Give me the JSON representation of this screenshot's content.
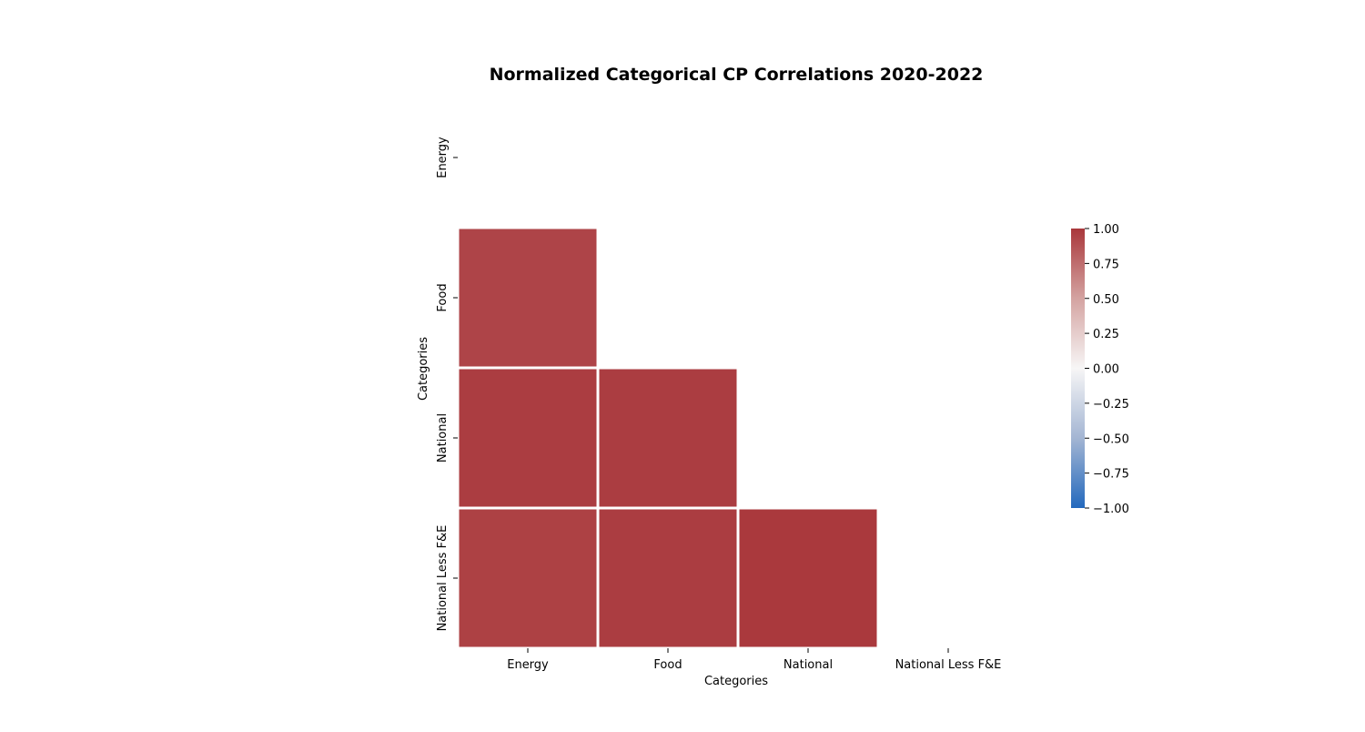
{
  "chart_data": {
    "type": "heatmap",
    "title": "Normalized Categorical CP Correlations 2020-2022",
    "xlabel": "Categories",
    "ylabel": "Categories",
    "categories": [
      "Energy",
      "Food",
      "National",
      "National Less F&E"
    ],
    "mask": "upper-triangle-including-diagonal",
    "cells": [
      {
        "row": "Food",
        "col": "Energy",
        "value": 0.93
      },
      {
        "row": "National",
        "col": "Energy",
        "value": 0.97
      },
      {
        "row": "National",
        "col": "Food",
        "value": 0.97
      },
      {
        "row": "National Less F&E",
        "col": "Energy",
        "value": 0.95
      },
      {
        "row": "National Less F&E",
        "col": "Food",
        "value": 0.97
      },
      {
        "row": "National Less F&E",
        "col": "National",
        "value": 0.99
      }
    ],
    "colorbar": {
      "colormap": "vlag",
      "vmin": -1.0,
      "vmax": 1.0,
      "ticks": [
        1.0,
        0.75,
        0.5,
        0.25,
        0.0,
        -0.25,
        -0.5,
        -0.75,
        -1.0
      ],
      "tick_labels": [
        "1.00",
        "0.75",
        "0.50",
        "0.25",
        "0.00",
        "−0.25",
        "−0.50",
        "−0.75",
        "−1.00"
      ],
      "low_color": "#2369bd",
      "mid_color": "#f7f6f6",
      "high_color": "#a9373b"
    },
    "grid": false,
    "legend": "colorbar-right"
  }
}
